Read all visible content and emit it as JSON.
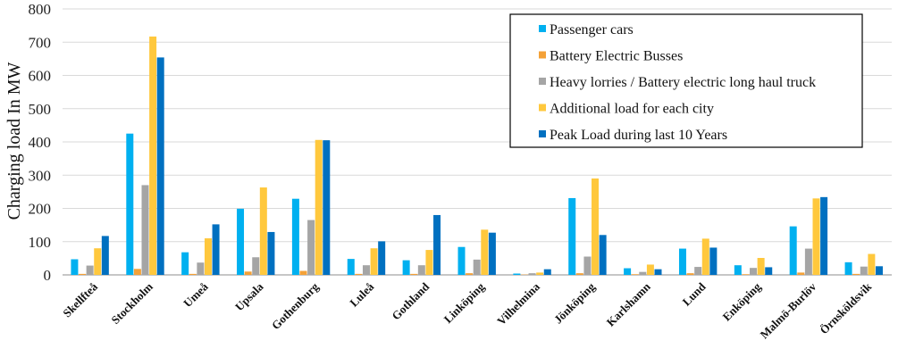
{
  "chart_data": {
    "type": "bar",
    "title": "",
    "xlabel": "",
    "ylabel": "Charging load In MW",
    "ylim": [
      0,
      800
    ],
    "yticks": [
      0,
      100,
      200,
      300,
      400,
      500,
      600,
      700,
      800
    ],
    "grid": true,
    "legend_position": "top-right",
    "categories": [
      "Skellfteå",
      "Stockholm",
      "Umeå",
      "Upsala",
      "Gothenburg",
      "Luleå",
      "Gothland",
      "Linköping",
      "Vilhelmina",
      "Jönköping",
      "Karlshamn",
      "Lund",
      "Enköping",
      "Malmö-Burlöv",
      "Örnsköldsvik"
    ],
    "series": [
      {
        "name": "Passenger cars",
        "color": "#00B0F0",
        "values": [
          47,
          425,
          68,
          199,
          229,
          48,
          44,
          84,
          4,
          231,
          20,
          79,
          29,
          146,
          38
        ]
      },
      {
        "name": "Battery Electric Busses",
        "color": "#F4A137",
        "values": [
          3,
          18,
          3,
          10,
          12,
          3,
          3,
          5,
          1,
          5,
          2,
          5,
          2,
          7,
          3
        ]
      },
      {
        "name": "Heavy lorries / Battery electric long haul truck",
        "color": "#A5A5A5",
        "values": [
          28,
          270,
          37,
          53,
          165,
          29,
          29,
          46,
          5,
          55,
          9,
          24,
          21,
          79,
          25
        ]
      },
      {
        "name": "Additional load for each city",
        "color": "#FFC83D",
        "values": [
          80,
          717,
          110,
          263,
          406,
          80,
          75,
          136,
          7,
          290,
          31,
          109,
          51,
          230,
          63
        ]
      },
      {
        "name": "Peak Load during last 10 Years",
        "color": "#0070C0",
        "values": [
          117,
          654,
          152,
          129,
          405,
          101,
          180,
          127,
          17,
          120,
          17,
          82,
          23,
          234,
          26
        ]
      }
    ]
  }
}
